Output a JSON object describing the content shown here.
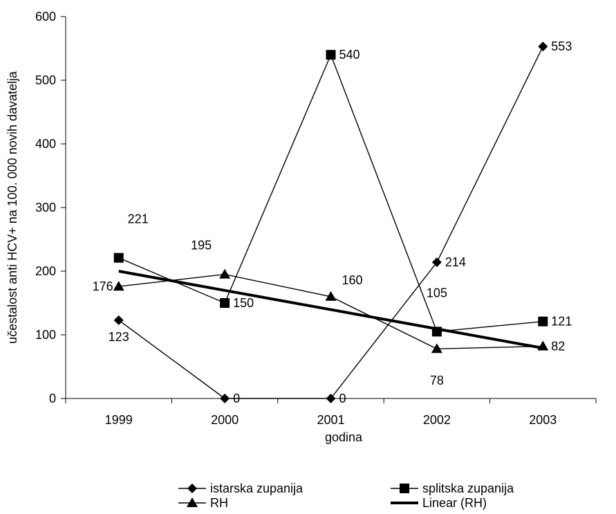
{
  "chart_data": {
    "type": "line",
    "xlabel": "godina",
    "ylabel": "učestalost anti HCV+ na 100. 000 novih davatelja",
    "categories": [
      "1999",
      "2000",
      "2001",
      "2002",
      "2003"
    ],
    "ylim": [
      0,
      600
    ],
    "yticks": [
      0,
      100,
      200,
      300,
      400,
      500,
      600
    ],
    "ytick_labels": [
      "0",
      "100",
      "200",
      "300",
      "400",
      "500",
      "600"
    ],
    "grid": false,
    "legend_position": "bottom",
    "series": [
      {
        "name": "istarska zupanija",
        "marker": "diamond",
        "values": [
          123,
          0,
          0,
          214,
          553
        ],
        "labels": [
          "123",
          "0",
          "0",
          "214",
          "553"
        ]
      },
      {
        "name": "splitska zupanija",
        "marker": "square",
        "values": [
          221,
          150,
          540,
          105,
          121
        ],
        "labels": [
          "221",
          "150",
          "540",
          "105",
          "121"
        ]
      },
      {
        "name": "RH",
        "marker": "triangle",
        "values": [
          176,
          195,
          160,
          78,
          82
        ],
        "labels": [
          "176",
          "195",
          "160",
          "78",
          "82"
        ]
      },
      {
        "name": "Linear (RH)",
        "marker": "none",
        "trendline_of": "RH",
        "values": [
          200,
          169.8,
          139.6,
          109.4,
          79.2
        ]
      }
    ]
  }
}
